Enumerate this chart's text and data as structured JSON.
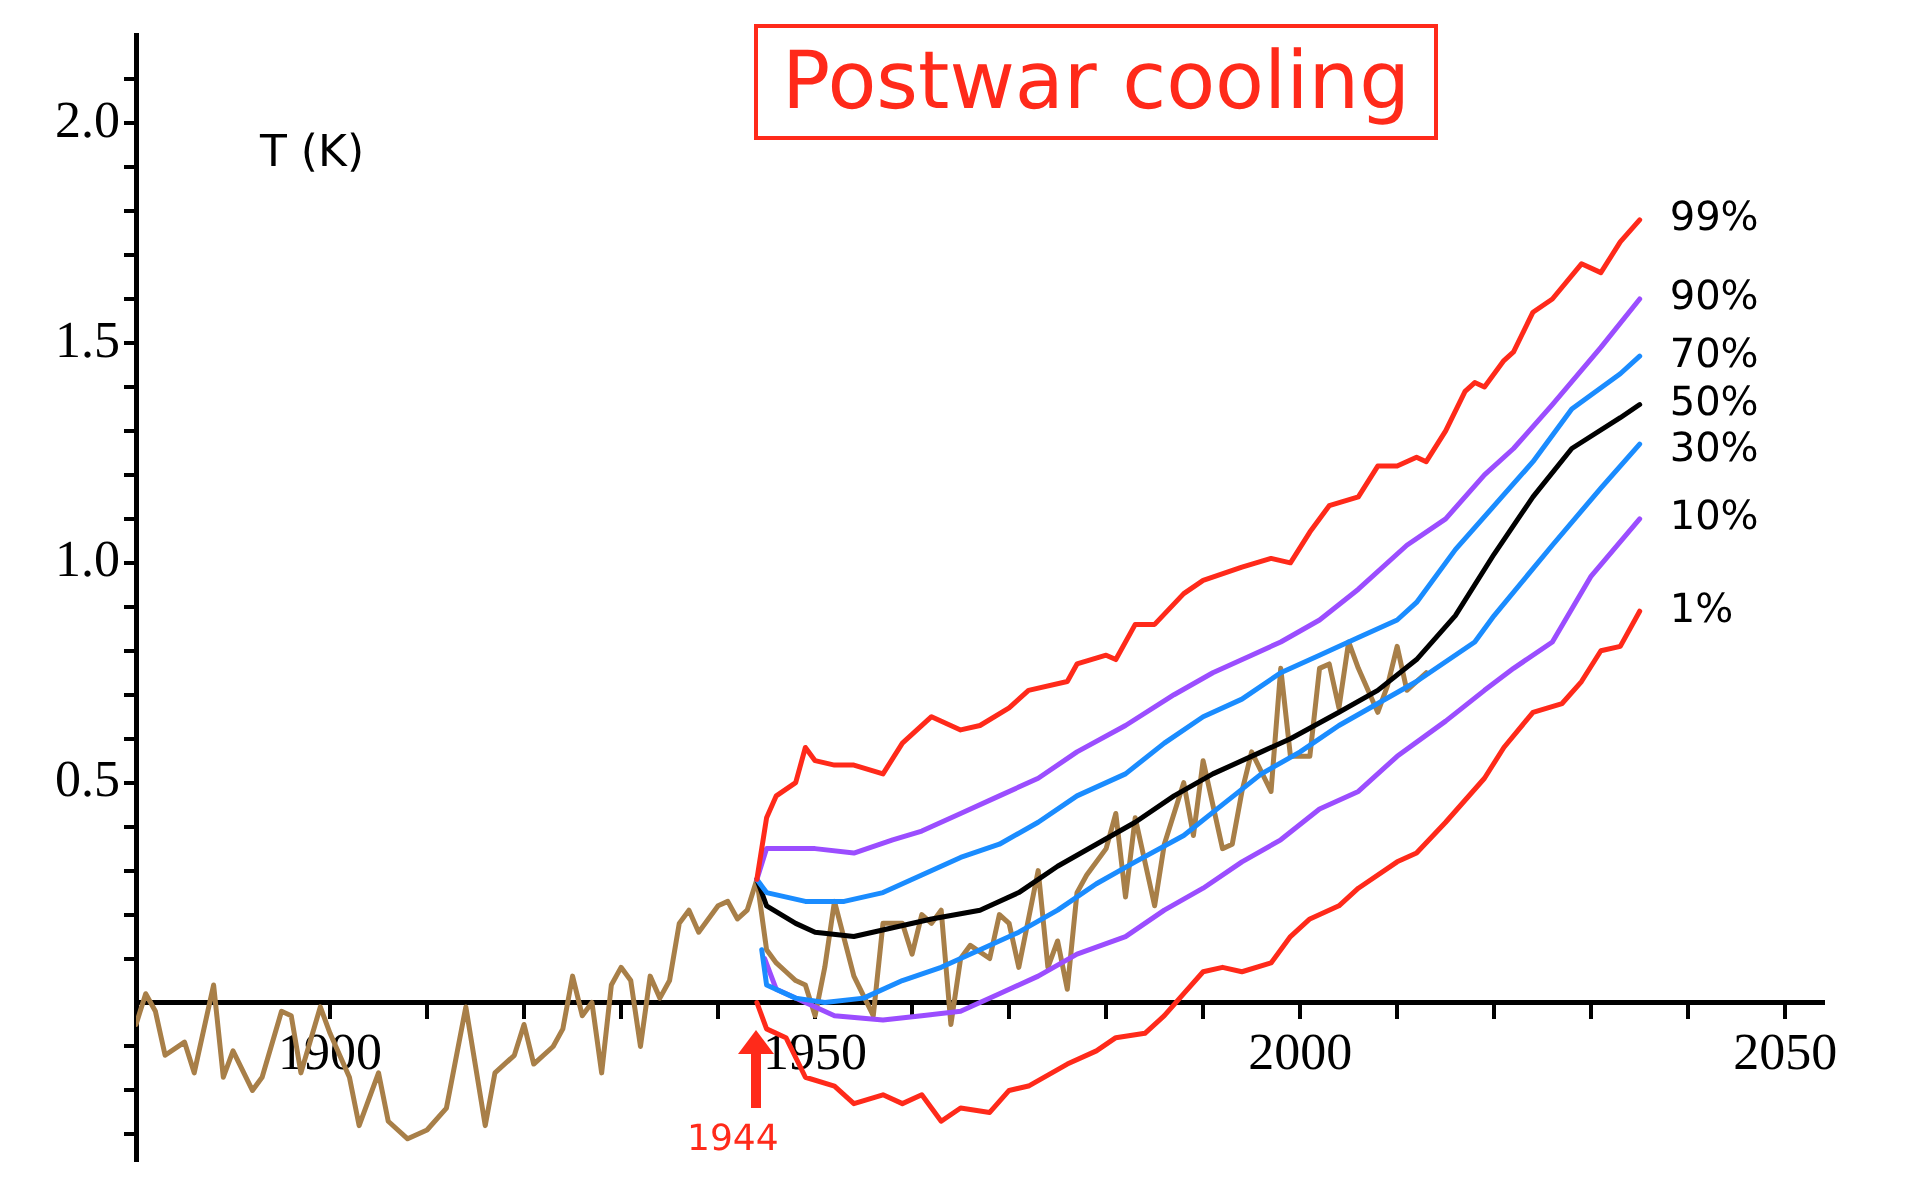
{
  "chart_data": {
    "type": "line",
    "title": "Postwar cooling",
    "ylabel": "T (K)",
    "xlim": [
      1880,
      2054
    ],
    "ylim": [
      -0.36,
      2.2
    ],
    "xticks": [
      {
        "value": 1900,
        "label": "1900"
      },
      {
        "value": 1910,
        "label": null
      },
      {
        "value": 1920,
        "label": null
      },
      {
        "value": 1930,
        "label": null
      },
      {
        "value": 1940,
        "label": null
      },
      {
        "value": 1950,
        "label": "1950"
      },
      {
        "value": 1960,
        "label": null
      },
      {
        "value": 1970,
        "label": null
      },
      {
        "value": 1980,
        "label": null
      },
      {
        "value": 1990,
        "label": null
      },
      {
        "value": 2000,
        "label": "2000"
      },
      {
        "value": 2010,
        "label": null
      },
      {
        "value": 2020,
        "label": null
      },
      {
        "value": 2030,
        "label": null
      },
      {
        "value": 2040,
        "label": null
      },
      {
        "value": 2050,
        "label": "2050"
      }
    ],
    "yticks": [
      {
        "value": -0.3,
        "label": null
      },
      {
        "value": -0.2,
        "label": null
      },
      {
        "value": -0.1,
        "label": null
      },
      {
        "value": 0.1,
        "label": null
      },
      {
        "value": 0.2,
        "label": null
      },
      {
        "value": 0.3,
        "label": null
      },
      {
        "value": 0.4,
        "label": null
      },
      {
        "value": 0.5,
        "label": "0.5"
      },
      {
        "value": 0.6,
        "label": null
      },
      {
        "value": 0.7,
        "label": null
      },
      {
        "value": 0.8,
        "label": null
      },
      {
        "value": 0.9,
        "label": null
      },
      {
        "value": 1.0,
        "label": "1.0"
      },
      {
        "value": 1.1,
        "label": null
      },
      {
        "value": 1.2,
        "label": null
      },
      {
        "value": 1.3,
        "label": null
      },
      {
        "value": 1.4,
        "label": null
      },
      {
        "value": 1.5,
        "label": "1.5"
      },
      {
        "value": 1.6,
        "label": null
      },
      {
        "value": 1.7,
        "label": null
      },
      {
        "value": 1.8,
        "label": null
      },
      {
        "value": 1.9,
        "label": null
      },
      {
        "value": 2.0,
        "label": "2.0"
      },
      {
        "value": 2.1,
        "label": null
      }
    ],
    "annotations": [
      "1944"
    ],
    "series": [
      {
        "name": "99%",
        "color": "#ff2a1a",
        "x": [
          1944,
          1945,
          1946,
          1948,
          1949,
          1950,
          1952,
          1954,
          1957,
          1959,
          1962,
          1965,
          1967,
          1970,
          1972,
          1976,
          1977,
          1980,
          1981,
          1983,
          1985,
          1988,
          1990,
          1994,
          1997,
          1999,
          2001,
          2003,
          2006,
          2008,
          2010,
          2012,
          2013,
          2015,
          2017,
          2018,
          2019,
          2021,
          2022,
          2024,
          2026,
          2029,
          2031,
          2033,
          2035
        ],
        "values": [
          0.28,
          0.42,
          0.47,
          0.5,
          0.58,
          0.55,
          0.54,
          0.54,
          0.52,
          0.59,
          0.65,
          0.62,
          0.63,
          0.67,
          0.71,
          0.73,
          0.77,
          0.79,
          0.78,
          0.86,
          0.86,
          0.93,
          0.96,
          0.99,
          1.01,
          1.0,
          1.07,
          1.13,
          1.15,
          1.22,
          1.22,
          1.24,
          1.23,
          1.3,
          1.39,
          1.41,
          1.4,
          1.46,
          1.48,
          1.57,
          1.6,
          1.68,
          1.66,
          1.73,
          1.78
        ]
      },
      {
        "name": "90%",
        "color": "#9b4dff",
        "x": [
          1944,
          1945,
          1947,
          1950,
          1954,
          1958,
          1961,
          1965,
          1969,
          1973,
          1977,
          1982,
          1987,
          1991,
          1995,
          1998,
          2002,
          2006,
          2011,
          2015,
          2019,
          2022,
          2026,
          2031,
          2035
        ],
        "values": [
          0.28,
          0.35,
          0.35,
          0.35,
          0.34,
          0.37,
          0.39,
          0.43,
          0.47,
          0.51,
          0.57,
          0.63,
          0.7,
          0.75,
          0.79,
          0.82,
          0.87,
          0.94,
          1.04,
          1.1,
          1.2,
          1.26,
          1.36,
          1.49,
          1.6
        ]
      },
      {
        "name": "70%",
        "color": "#1a8cff",
        "x": [
          1944,
          1945,
          1949,
          1953,
          1957,
          1961,
          1965,
          1969,
          1973,
          1977,
          1982,
          1986,
          1990,
          1994,
          1998,
          2002,
          2006,
          2010,
          2012,
          2016,
          2020,
          2024,
          2028,
          2033,
          2035
        ],
        "values": [
          0.28,
          0.25,
          0.23,
          0.23,
          0.25,
          0.29,
          0.33,
          0.36,
          0.41,
          0.47,
          0.52,
          0.59,
          0.65,
          0.69,
          0.75,
          0.79,
          0.83,
          0.87,
          0.91,
          1.03,
          1.13,
          1.23,
          1.35,
          1.43,
          1.47
        ]
      },
      {
        "name": "50%",
        "color": "#000000",
        "x": [
          1944,
          1945,
          1948,
          1950,
          1954,
          1958,
          1962,
          1967,
          1971,
          1975,
          1979,
          1983,
          1987,
          1991,
          1996,
          1999,
          2004,
          2008,
          2012,
          2016,
          2020,
          2024,
          2028,
          2033,
          2035
        ],
        "values": [
          0.28,
          0.22,
          0.18,
          0.16,
          0.15,
          0.17,
          0.19,
          0.21,
          0.25,
          0.31,
          0.36,
          0.41,
          0.47,
          0.52,
          0.57,
          0.6,
          0.66,
          0.71,
          0.78,
          0.88,
          1.02,
          1.15,
          1.26,
          1.33,
          1.36
        ]
      },
      {
        "name": "30%",
        "color": "#1a8cff",
        "x": [
          1944.5,
          1945,
          1948,
          1951,
          1955,
          1959,
          1963,
          1967,
          1971,
          1975,
          1979,
          1983,
          1988,
          1992,
          1996,
          2000,
          2004,
          2008,
          2012,
          2018,
          2020,
          2026,
          2031,
          2035
        ],
        "values": [
          0.12,
          0.04,
          0.01,
          0.0,
          0.01,
          0.05,
          0.08,
          0.12,
          0.16,
          0.21,
          0.27,
          0.32,
          0.38,
          0.45,
          0.52,
          0.57,
          0.63,
          0.68,
          0.73,
          0.82,
          0.88,
          1.04,
          1.17,
          1.27
        ]
      },
      {
        "name": "10%",
        "color": "#9b4dff",
        "x": [
          1944.8,
          1946,
          1949,
          1952,
          1957,
          1961,
          1965,
          1969,
          1973,
          1977,
          1982,
          1986,
          1990,
          1994,
          1998,
          2002,
          2006,
          2010,
          2015,
          2019,
          2022,
          2026,
          2030,
          2035
        ],
        "values": [
          0.1,
          0.03,
          0.0,
          -0.03,
          -0.04,
          -0.03,
          -0.02,
          0.02,
          0.06,
          0.11,
          0.15,
          0.21,
          0.26,
          0.32,
          0.37,
          0.44,
          0.48,
          0.56,
          0.64,
          0.71,
          0.76,
          0.82,
          0.97,
          1.1
        ]
      },
      {
        "name": "1%",
        "color": "#ff2a1a",
        "x": [
          1944,
          1945,
          1947,
          1949,
          1952,
          1954,
          1957,
          1959,
          1961,
          1963,
          1965,
          1968,
          1970,
          1972,
          1976,
          1979,
          1981,
          1984,
          1986,
          1988,
          1990,
          1992,
          1994,
          1997,
          1999,
          2001,
          2004,
          2006,
          2010,
          2012,
          2015,
          2019,
          2021,
          2024,
          2027,
          2029,
          2031,
          2033,
          2035
        ],
        "values": [
          0.0,
          -0.06,
          -0.08,
          -0.17,
          -0.19,
          -0.23,
          -0.21,
          -0.23,
          -0.21,
          -0.27,
          -0.24,
          -0.25,
          -0.2,
          -0.19,
          -0.14,
          -0.11,
          -0.08,
          -0.07,
          -0.03,
          0.02,
          0.07,
          0.08,
          0.07,
          0.09,
          0.15,
          0.19,
          0.22,
          0.26,
          0.32,
          0.34,
          0.41,
          0.51,
          0.58,
          0.66,
          0.68,
          0.73,
          0.8,
          0.81,
          0.89
        ]
      },
      {
        "color": "#a87f48",
        "x": [
          1880,
          1881,
          1882,
          1883,
          1885,
          1886,
          1888,
          1889,
          1890,
          1892,
          1893,
          1895,
          1896,
          1897,
          1899,
          1900,
          1902,
          1903,
          1905,
          1906,
          1908,
          1910,
          1912,
          1914,
          1916,
          1917,
          1919,
          1920,
          1921,
          1923,
          1924,
          1925,
          1926,
          1927,
          1928,
          1929,
          1930,
          1931,
          1932,
          1933,
          1934,
          1935,
          1936,
          1937,
          1938,
          1940,
          1941,
          1942,
          1943,
          1944,
          1945,
          1946,
          1947,
          1948,
          1949,
          1950,
          1951,
          1952,
          1954,
          1956,
          1957,
          1959,
          1960,
          1961,
          1962,
          1963,
          1964,
          1965,
          1966,
          1968,
          1969,
          1970,
          1971,
          1973,
          1974,
          1975,
          1976,
          1977,
          1978,
          1980,
          1981,
          1982,
          1983,
          1985,
          1986,
          1988,
          1989,
          1990,
          1992,
          1993,
          1994,
          1995,
          1997,
          1998,
          1999,
          2001,
          2002,
          2003,
          2004,
          2005,
          2006,
          2008,
          2009,
          2010,
          2011,
          2013
        ],
        "values": [
          -0.05,
          0.02,
          -0.02,
          -0.12,
          -0.09,
          -0.16,
          0.04,
          -0.17,
          -0.11,
          -0.2,
          -0.17,
          -0.02,
          -0.03,
          -0.16,
          -0.01,
          -0.07,
          -0.17,
          -0.28,
          -0.16,
          -0.27,
          -0.31,
          -0.29,
          -0.24,
          -0.01,
          -0.28,
          -0.16,
          -0.12,
          -0.05,
          -0.14,
          -0.1,
          -0.06,
          0.06,
          -0.03,
          0.0,
          -0.16,
          0.04,
          0.08,
          0.05,
          -0.1,
          0.06,
          0.01,
          0.05,
          0.18,
          0.21,
          0.16,
          0.22,
          0.23,
          0.19,
          0.21,
          0.28,
          0.12,
          0.09,
          0.07,
          0.05,
          0.04,
          -0.03,
          0.08,
          0.23,
          0.06,
          -0.03,
          0.18,
          0.18,
          0.11,
          0.2,
          0.18,
          0.21,
          -0.05,
          0.1,
          0.13,
          0.1,
          0.2,
          0.18,
          0.08,
          0.3,
          0.08,
          0.14,
          0.03,
          0.25,
          0.29,
          0.35,
          0.43,
          0.24,
          0.42,
          0.22,
          0.36,
          0.5,
          0.38,
          0.55,
          0.35,
          0.36,
          0.48,
          0.57,
          0.48,
          0.76,
          0.56,
          0.56,
          0.76,
          0.77,
          0.67,
          0.82,
          0.76,
          0.66,
          0.72,
          0.81,
          0.71,
          0.75
        ]
      }
    ]
  }
}
